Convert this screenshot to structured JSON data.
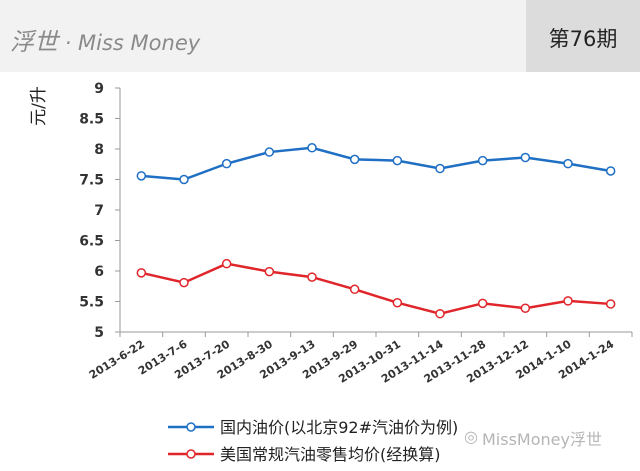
{
  "header": {
    "brand_cn": "浮世",
    "brand_en": " · Miss Money",
    "issue": "第76期"
  },
  "watermark": "MissMoney浮世",
  "chart_data": {
    "type": "line",
    "ylabel": "元/升",
    "ylim": [
      5,
      9
    ],
    "yticks": [
      "5",
      "5.5",
      "6",
      "6.5",
      "7",
      "7.5",
      "8",
      "8.5",
      "9"
    ],
    "categories": [
      "2013-6-22",
      "2013-7-6",
      "2013-7-20",
      "2013-8-30",
      "2013-9-13",
      "2013-9-29",
      "2013-10-31",
      "2013-11-14",
      "2013-11-28",
      "2013-12-12",
      "2014-1-10",
      "2014-1-24"
    ],
    "series": [
      {
        "name": "国内油价(以北京92#汽油价为例)",
        "color": "#1f6fc4",
        "values": [
          7.56,
          7.5,
          7.76,
          7.95,
          8.02,
          7.83,
          7.81,
          7.68,
          7.81,
          7.86,
          7.76,
          7.64
        ]
      },
      {
        "name": "美国常规汽油零售均价(经换算)",
        "color": "#e0262b",
        "values": [
          5.97,
          5.81,
          6.12,
          5.99,
          5.9,
          5.7,
          5.48,
          5.3,
          5.47,
          5.39,
          5.51,
          5.46
        ]
      }
    ],
    "grid": false,
    "legend": "bottom"
  }
}
